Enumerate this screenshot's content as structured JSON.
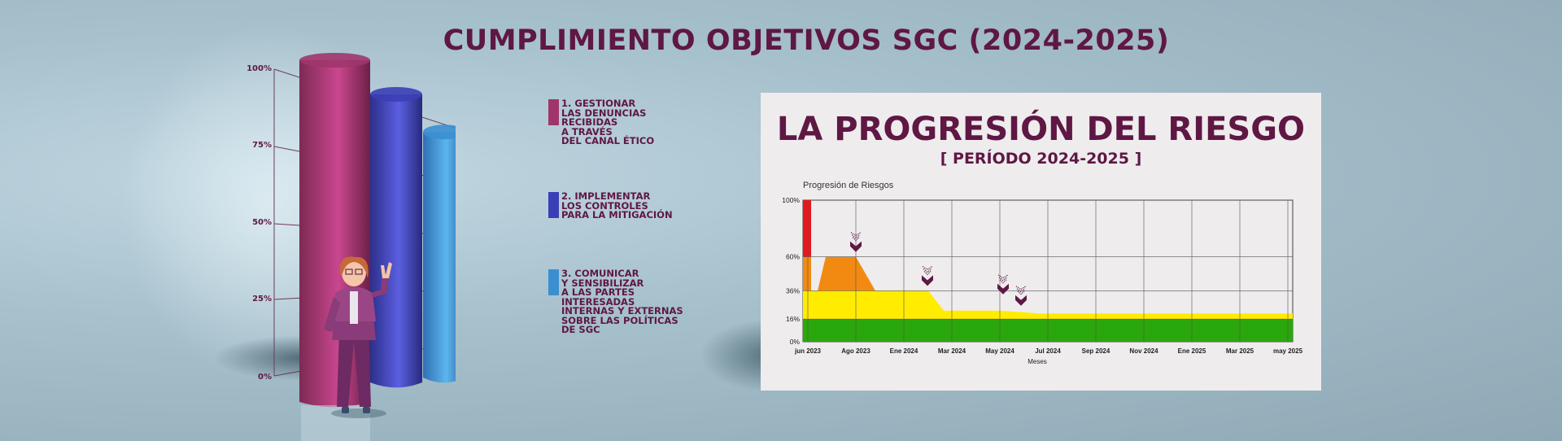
{
  "main_title": "CUMPLIMIENTO OBJETIVOS SGC (2024-2025)",
  "objectives": [
    {
      "label": "1. GESTIONAR\nLAS DENUNCIAS\nRECIBIDAS\nA TRAVÉS\nDEL CANAL ÉTICO",
      "color": "#a0356b",
      "value": 100
    },
    {
      "label": "2. IMPLEMENTAR\nLOS CONTROLES\nPARA LA MITIGACIÓN",
      "color": "#3b3fb5",
      "value": 90
    },
    {
      "label": "3. COMUNICAR\nY SENSIBILIZAR\nA LAS PARTES\nINTERESADAS\nINTERNAS Y EXTERNAS\nSOBRE LAS POLÍTICAS\nDE SGC",
      "color": "#3b8fd0",
      "value": 79
    }
  ],
  "chart_data": [
    {
      "type": "bar",
      "categories": [
        "1",
        "2",
        "3"
      ],
      "values": [
        100,
        90,
        79
      ],
      "yticks": [
        "100%",
        "75%",
        "50%",
        "25%",
        "0%"
      ],
      "ylim": [
        0,
        100
      ]
    },
    {
      "type": "area",
      "title": "Progresión de Riesgos",
      "xlabel": "Meses",
      "x": [
        "jun 2023",
        "Ago 2023",
        "Ene 2024",
        "Mar 2024",
        "May 2024",
        "Jul 2024",
        "Sep 2024",
        "Nov 2024",
        "Ene 2025",
        "Mar 2025",
        "may 2025"
      ],
      "yticks": [
        "100%",
        "60%",
        "36%",
        "16%",
        "0%"
      ],
      "ylim": [
        0,
        100
      ],
      "risk_bands": [
        {
          "level": "red",
          "color": "#e8161a"
        },
        {
          "level": "orange",
          "color": "#f28a12"
        },
        {
          "level": "yellow",
          "color": "#ffec00"
        },
        {
          "level": "green",
          "color": "#2aa70c"
        }
      ],
      "markers": [
        "Ago 2023",
        "Feb 2024",
        "May 2024",
        "Jun 2024"
      ]
    }
  ],
  "panel": {
    "title": "LA PROGRESIÓN DEL RIESGO",
    "subtitle": "[ PERÍODO 2024-2025 ]",
    "chart_title": "Progresión de Riesgos",
    "xlabel": "Meses"
  }
}
